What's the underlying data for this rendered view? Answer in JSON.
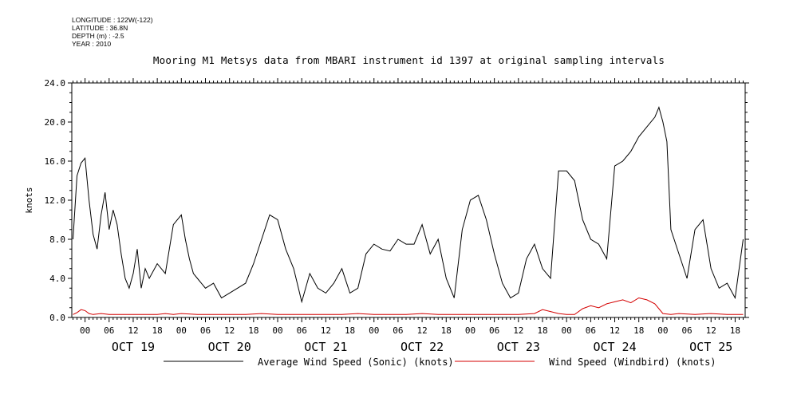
{
  "header": {
    "longitude": "LONGITUDE : 122W(-122)",
    "latitude": "LATITUDE : 36.8N",
    "depth": "DEPTH (m) : -2.5",
    "year": "YEAR : 2010"
  },
  "chart_data": {
    "type": "line",
    "title": "Mooring M1 Metsys data from MBARI instrument id 1397 at original sampling intervals",
    "ylabel": "knots",
    "xlabel": "",
    "ylim": [
      0,
      24
    ],
    "y_ticks": [
      "0.0",
      "4.0",
      "8.0",
      "12.0",
      "16.0",
      "20.0",
      "24.0"
    ],
    "x_hour_labels": [
      "00",
      "06",
      "12",
      "18",
      "00",
      "06",
      "12",
      "18",
      "00",
      "06",
      "12",
      "18",
      "00",
      "06",
      "12",
      "18",
      "00",
      "06",
      "12",
      "18",
      "00",
      "06",
      "12",
      "18",
      "00",
      "06",
      "12",
      "18"
    ],
    "x_day_labels": [
      "OCT 19",
      "OCT 20",
      "OCT 21",
      "OCT 22",
      "OCT 23",
      "OCT 24",
      "OCT 25"
    ],
    "x_range_hours": [
      -3.3,
      164.5
    ],
    "series": [
      {
        "name": "Average Wind Speed (Sonic) (knots)",
        "color": "#000000",
        "x_hours": [
          -3,
          -2,
          -1,
          0,
          1,
          2,
          3,
          4,
          5,
          6,
          7,
          8,
          9,
          10,
          11,
          12,
          13,
          14,
          15,
          16,
          18,
          20,
          22,
          24,
          25,
          26,
          27,
          28,
          30,
          32,
          34,
          36,
          38,
          40,
          42,
          44,
          46,
          48,
          50,
          52,
          54,
          56,
          58,
          60,
          62,
          64,
          66,
          68,
          70,
          72,
          74,
          76,
          78,
          80,
          82,
          84,
          86,
          88,
          90,
          92,
          94,
          96,
          98,
          100,
          102,
          104,
          106,
          108,
          110,
          112,
          114,
          116,
          118,
          120,
          122,
          124,
          126,
          128,
          130,
          132,
          134,
          136,
          138,
          140,
          142,
          143,
          144,
          145,
          146,
          148,
          150,
          152,
          154,
          156,
          158,
          160,
          162,
          164
        ],
        "values": [
          8.0,
          14.5,
          15.8,
          16.3,
          12.0,
          8.5,
          7.0,
          10.5,
          12.8,
          9.0,
          11.0,
          9.5,
          6.5,
          4.0,
          3.0,
          4.5,
          7.0,
          3.0,
          5.0,
          4.0,
          5.5,
          4.5,
          9.5,
          10.5,
          8.0,
          6.0,
          4.5,
          4.0,
          3.0,
          3.5,
          2.0,
          2.5,
          3.0,
          3.5,
          5.5,
          8.0,
          10.5,
          10.0,
          7.0,
          5.0,
          1.6,
          4.5,
          3.0,
          2.5,
          3.5,
          5.0,
          2.5,
          3.0,
          6.5,
          7.5,
          7.0,
          6.8,
          8.0,
          7.5,
          7.5,
          9.5,
          6.5,
          8.0,
          4.0,
          2.0,
          9.0,
          12.0,
          12.5,
          10.0,
          6.5,
          3.5,
          2.0,
          2.5,
          6.0,
          7.5,
          5.0,
          4.0,
          15.0,
          15.0,
          14.0,
          10.0,
          8.0,
          7.5,
          6.0,
          15.5,
          16.0,
          17.0,
          18.5,
          19.5,
          20.5,
          21.5,
          20.0,
          18.0,
          9.0,
          6.5,
          4.0,
          9.0,
          10.0,
          5.0,
          3.0,
          3.5,
          2.0,
          8.0
        ]
      },
      {
        "name": "Wind Speed (Windbird) (knots)",
        "color": "#d40000",
        "x_hours": [
          -3,
          -2,
          -1,
          0,
          1,
          2,
          4,
          6,
          8,
          10,
          12,
          14,
          16,
          18,
          20,
          22,
          24,
          28,
          32,
          36,
          40,
          44,
          48,
          52,
          56,
          60,
          64,
          68,
          72,
          76,
          80,
          84,
          88,
          92,
          96,
          100,
          104,
          108,
          112,
          114,
          116,
          118,
          120,
          122,
          124,
          126,
          128,
          130,
          132,
          134,
          136,
          138,
          140,
          142,
          144,
          146,
          148,
          152,
          156,
          160,
          164
        ],
        "values": [
          0.3,
          0.5,
          0.8,
          0.7,
          0.4,
          0.3,
          0.4,
          0.3,
          0.3,
          0.3,
          0.3,
          0.3,
          0.3,
          0.3,
          0.4,
          0.3,
          0.4,
          0.3,
          0.3,
          0.3,
          0.3,
          0.4,
          0.3,
          0.3,
          0.3,
          0.3,
          0.3,
          0.4,
          0.3,
          0.3,
          0.3,
          0.4,
          0.3,
          0.3,
          0.3,
          0.3,
          0.3,
          0.3,
          0.4,
          0.8,
          0.6,
          0.4,
          0.3,
          0.3,
          0.9,
          1.2,
          1.0,
          1.4,
          1.6,
          1.8,
          1.5,
          2.0,
          1.8,
          1.4,
          0.4,
          0.3,
          0.4,
          0.3,
          0.4,
          0.3,
          0.3
        ]
      }
    ]
  }
}
